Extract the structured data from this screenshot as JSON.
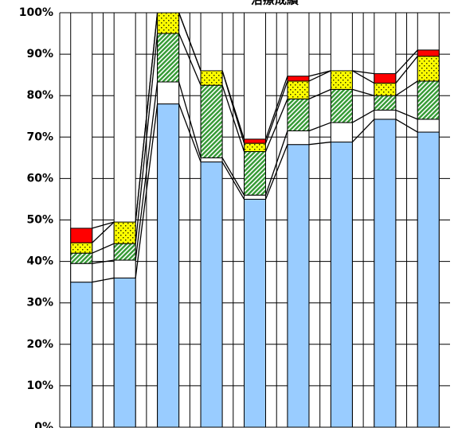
{
  "chart_data": {
    "type": "stacked-bar",
    "title": "治療成績",
    "categories": [
      null,
      null,
      null,
      null,
      null,
      null,
      null,
      null,
      null
    ],
    "series": [
      {
        "color": "#99ccff",
        "values": [
          35,
          36,
          78,
          64,
          55,
          68.2,
          68.8,
          74.3,
          71.2
        ]
      },
      {
        "color": "#ffffff",
        "values": [
          4.5,
          4.3,
          5.3,
          1,
          1,
          3.3,
          4.7,
          2.2,
          3.1
        ]
      },
      {
        "color": "#339933",
        "pattern": "hatch",
        "values": [
          2.5,
          4,
          11.7,
          17.5,
          10.5,
          7.7,
          8,
          3.5,
          9.2
        ]
      },
      {
        "color": "#ffff00",
        "pattern": "dots",
        "values": [
          2.5,
          5.2,
          5,
          3.5,
          2,
          4.3,
          4.5,
          3,
          6
        ]
      },
      {
        "color": "#ff0000",
        "values": [
          3.5,
          0,
          0,
          0,
          1,
          1.2,
          0,
          2.3,
          1.5
        ]
      }
    ],
    "ylim": [
      0,
      100
    ],
    "yticks": [
      {
        "value": 0,
        "label": "0%"
      },
      {
        "value": 10,
        "label": "10%"
      },
      {
        "value": 20,
        "label": "20%"
      },
      {
        "value": 30,
        "label": "30%"
      },
      {
        "value": 40,
        "label": "40%"
      },
      {
        "value": 50,
        "label": "50%"
      },
      {
        "value": 60,
        "label": "60%"
      },
      {
        "value": 70,
        "label": "70%"
      },
      {
        "value": 80,
        "label": "80%"
      },
      {
        "value": 90,
        "label": "90%"
      },
      {
        "value": 100,
        "label": "100%"
      }
    ],
    "grid": true,
    "connector_lines": true
  }
}
